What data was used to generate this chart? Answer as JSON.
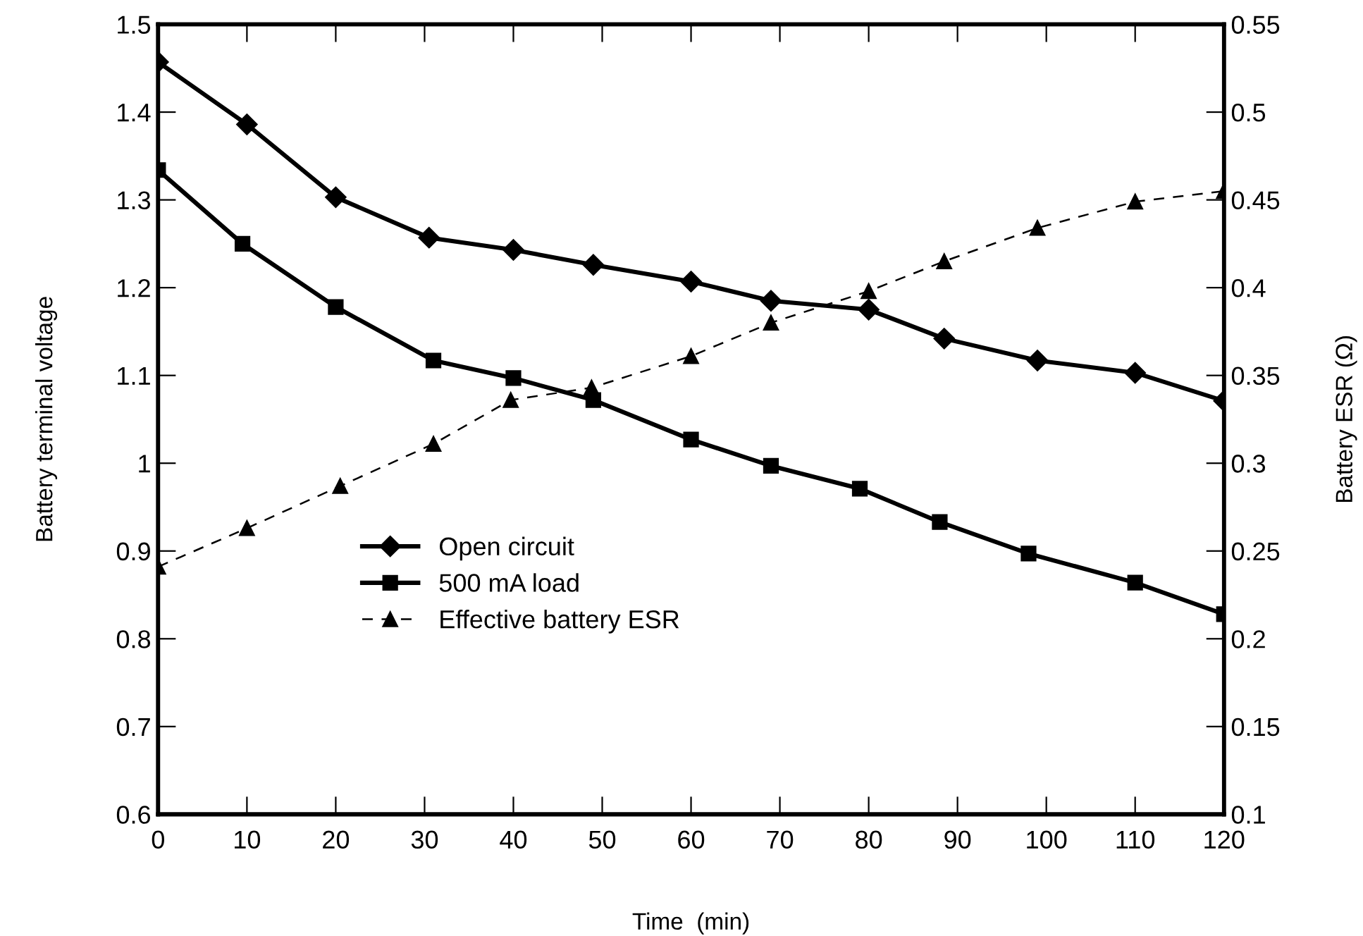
{
  "chart_data": {
    "type": "line",
    "xlabel": "Time  (min)",
    "ylabel": "Battery terminal voltage",
    "y2label": "Battery ESR (Ω)",
    "xlim": [
      0,
      120
    ],
    "xticks": [
      0,
      10,
      20,
      30,
      40,
      50,
      60,
      70,
      80,
      90,
      100,
      110,
      120
    ],
    "ylim": [
      0.6,
      1.5
    ],
    "yticks": [
      0.6,
      0.7,
      0.8,
      0.9,
      1,
      1.1,
      1.2,
      1.3,
      1.4,
      1.5
    ],
    "y2lim": [
      0.1,
      0.55
    ],
    "y2ticks": [
      0.1,
      0.15,
      0.2,
      0.25,
      0.3,
      0.35,
      0.4,
      0.45,
      0.5,
      0.55
    ],
    "grid": false,
    "legend": "bottom left",
    "series": [
      {
        "name": "Open circuit",
        "color": "#000000",
        "marker": "diamond",
        "line_style": "solid",
        "x": [
          0,
          10,
          20,
          30.5,
          40,
          49,
          60,
          69,
          80,
          88.5,
          99,
          110,
          120
        ],
        "values": [
          1.457,
          1.386,
          1.303,
          1.257,
          1.243,
          1.226,
          1.207,
          1.185,
          1.175,
          1.142,
          1.117,
          1.103,
          1.071
        ]
      },
      {
        "name": "500 mA load",
        "color": "#000000",
        "marker": "square",
        "line_style": "solid",
        "x": [
          0,
          9.5,
          20,
          31,
          40,
          49,
          60,
          69,
          79,
          88,
          98,
          110,
          120
        ],
        "values": [
          1.334,
          1.25,
          1.178,
          1.117,
          1.097,
          1.072,
          1.027,
          0.997,
          0.971,
          0.933,
          0.897,
          0.864,
          0.828
        ]
      },
      {
        "name": "Effective battery ESR",
        "color": "#000000",
        "marker": "triangle",
        "line_style": "dashed",
        "axis": "y2",
        "x": [
          0,
          10,
          20.5,
          31,
          39.7,
          48.8,
          60,
          69,
          80,
          88.5,
          99,
          110,
          120
        ],
        "values": [
          0.241,
          0.263,
          0.287,
          0.311,
          0.336,
          0.343,
          0.361,
          0.38,
          0.398,
          0.415,
          0.434,
          0.449,
          0.455
        ]
      }
    ]
  }
}
